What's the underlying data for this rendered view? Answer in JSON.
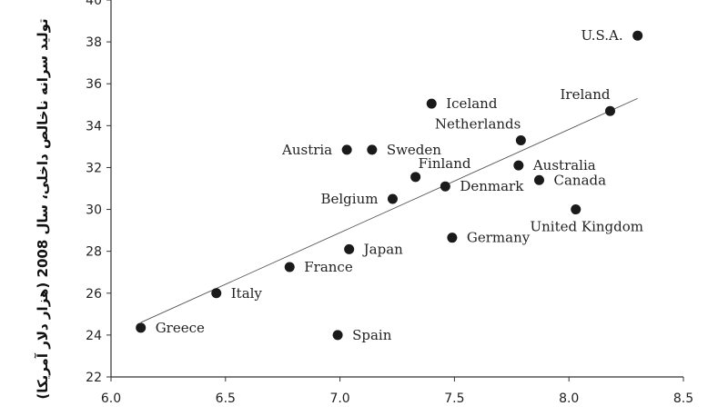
{
  "chart_data": {
    "type": "scatter",
    "title": "",
    "xlabel": "",
    "ylabel": "تولید سرانه ناخالص داخلی، سال 2008 (هزار دلار آمریکا)",
    "xlim": [
      6.0,
      8.5
    ],
    "ylim": [
      22,
      40
    ],
    "xticks": [
      "6.0",
      "6.5",
      "7.0",
      "7.5",
      "8.0",
      "8.5"
    ],
    "yticks": [
      "22",
      "24",
      "26",
      "28",
      "30",
      "32",
      "34",
      "36",
      "38",
      "40"
    ],
    "grid": false,
    "trendline": {
      "x": [
        6.13,
        8.3
      ],
      "y": [
        24.6,
        35.3
      ]
    },
    "points": [
      {
        "label": "U.S.A.",
        "x": 8.3,
        "y": 38.3,
        "label_side": "left"
      },
      {
        "label": "Iceland",
        "x": 7.4,
        "y": 35.05,
        "label_side": "right"
      },
      {
        "label": "Ireland",
        "x": 8.18,
        "y": 34.7,
        "label_side": "above-left"
      },
      {
        "label": "Netherlands",
        "x": 7.79,
        "y": 33.3,
        "label_side": "above-left"
      },
      {
        "label": "Austria",
        "x": 7.03,
        "y": 32.85,
        "label_side": "left"
      },
      {
        "label": "Sweden",
        "x": 7.14,
        "y": 32.85,
        "label_side": "right"
      },
      {
        "label": "Australia",
        "x": 7.78,
        "y": 32.1,
        "label_side": "right"
      },
      {
        "label": "Finland",
        "x": 7.33,
        "y": 31.55,
        "label_side": "above-right"
      },
      {
        "label": "Canada",
        "x": 7.87,
        "y": 31.4,
        "label_side": "right"
      },
      {
        "label": "Denmark",
        "x": 7.46,
        "y": 31.1,
        "label_side": "right"
      },
      {
        "label": "Belgium",
        "x": 7.23,
        "y": 30.5,
        "label_side": "left"
      },
      {
        "label": "United Kingdom",
        "x": 8.03,
        "y": 30.0,
        "label_side": "below"
      },
      {
        "label": "Germany",
        "x": 7.49,
        "y": 28.65,
        "label_side": "right"
      },
      {
        "label": "Japan",
        "x": 7.04,
        "y": 28.1,
        "label_side": "right"
      },
      {
        "label": "France",
        "x": 6.78,
        "y": 27.25,
        "label_side": "right"
      },
      {
        "label": "Italy",
        "x": 6.46,
        "y": 26.0,
        "label_side": "right"
      },
      {
        "label": "Greece",
        "x": 6.13,
        "y": 24.35,
        "label_side": "right"
      },
      {
        "label": "Spain",
        "x": 6.99,
        "y": 24.0,
        "label_side": "right"
      }
    ],
    "colors": {
      "point": "#1a1a1a",
      "axis": "#333333",
      "trendline": "#555555"
    }
  }
}
